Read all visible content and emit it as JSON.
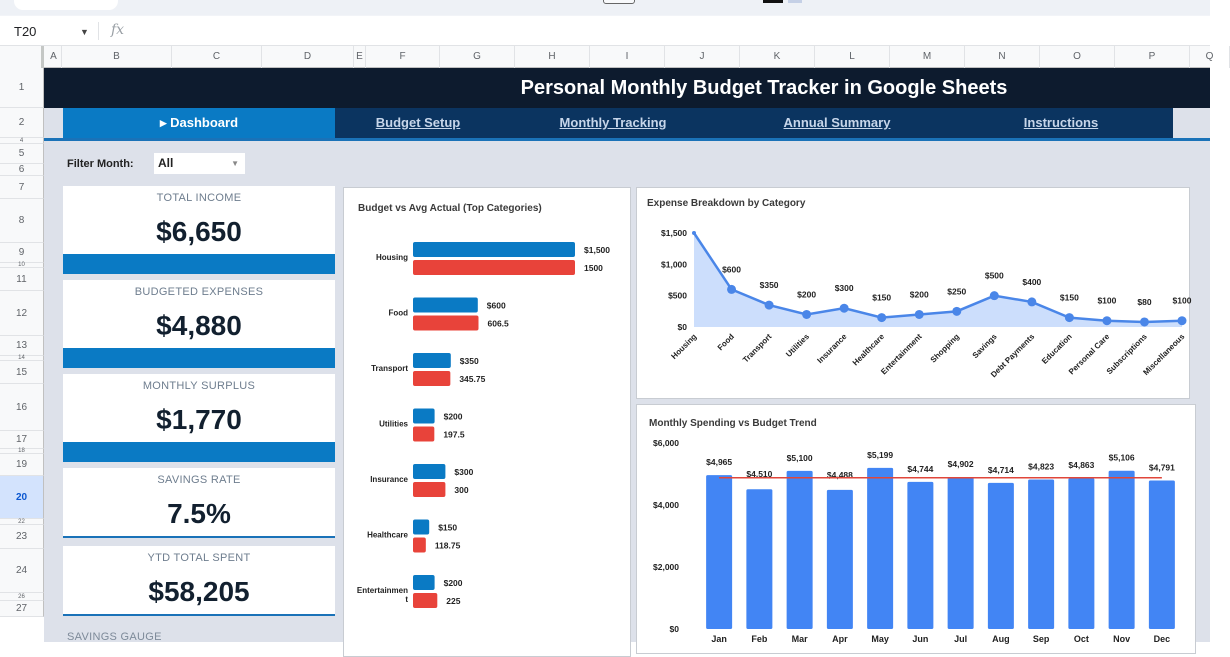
{
  "formula_bar": {
    "cell_ref": "T20",
    "fx_label": "fx",
    "formula": ""
  },
  "columns": [
    "A",
    "B",
    "C",
    "D",
    "E",
    "F",
    "G",
    "H",
    "I",
    "J",
    "K",
    "L",
    "M",
    "N",
    "O",
    "P",
    "Q"
  ],
  "rows": [
    "1",
    "2",
    "4",
    "5",
    "6",
    "7",
    "8",
    "9",
    "10",
    "11",
    "12",
    "13",
    "14",
    "15",
    "16",
    "17",
    "18",
    "19",
    "20",
    "22",
    "23",
    "24",
    "26",
    "27"
  ],
  "selected_row": "20",
  "header": {
    "title": "Personal Monthly Budget Tracker in Google Sheets"
  },
  "nav": {
    "tabs": [
      {
        "label": "▸ Dashboard",
        "active": true
      },
      {
        "label": "Budget Setup",
        "active": false
      },
      {
        "label": "Monthly Tracking",
        "active": false
      },
      {
        "label": "Annual Summary",
        "active": false
      },
      {
        "label": "Instructions",
        "active": false
      }
    ]
  },
  "filter": {
    "label": "Filter Month:",
    "value": "All"
  },
  "kpis": [
    {
      "label": "TOTAL INCOME",
      "value": "$6,650"
    },
    {
      "label": "BUDGETED EXPENSES",
      "value": "$4,880"
    },
    {
      "label": "MONTHLY SURPLUS",
      "value": "$1,770"
    },
    {
      "label": "SAVINGS RATE",
      "value": "7.5%"
    },
    {
      "label": "YTD TOTAL SPENT",
      "value": "$58,205"
    }
  ],
  "gauge": {
    "label": "SAVINGS GAUGE"
  },
  "colors": {
    "title_bg": "#0d1b2e",
    "nav_bg": "#0b3460",
    "accent": "#0a7ac4",
    "budget_bar": "#0a7ac4",
    "actual_bar": "#e8433a",
    "line_series": "#4a86e8",
    "area_fill": "#c6dafc",
    "trend_bar": "#4285f4",
    "budget_line": "#e0463a"
  },
  "chart_data": [
    {
      "type": "bar",
      "orientation": "horizontal",
      "title": "Budget vs Avg Actual (Top Categories)",
      "categories": [
        "Housing",
        "Food",
        "Transport",
        "Utilities",
        "Insurance",
        "Healthcare",
        "Entertainment"
      ],
      "category_display": [
        "Housing",
        "Food",
        "Transport",
        "Utilities",
        "Insurance",
        "Healthcare",
        "Entertainmen t"
      ],
      "series": [
        {
          "name": "Budget",
          "values": [
            1500,
            600,
            350,
            200,
            300,
            150,
            200
          ],
          "labels": [
            "$1,500",
            "$600",
            "$350",
            "$200",
            "$300",
            "$150",
            "$200"
          ]
        },
        {
          "name": "Avg Actual",
          "values": [
            1500,
            606.5,
            345.75,
            197.5,
            300,
            118.75,
            225
          ],
          "labels": [
            "1500",
            "606.5",
            "345.75",
            "197.5",
            "300",
            "118.75",
            "225"
          ]
        }
      ],
      "xlim": [
        0,
        1500
      ]
    },
    {
      "type": "area",
      "title": "Expense Breakdown by Category",
      "categories": [
        "Housing",
        "Food",
        "Transport",
        "Utilities",
        "Insurance",
        "Healthcare",
        "Entertainment",
        "Shopping",
        "Savings",
        "Debt Payments",
        "Education",
        "Personal Care",
        "Subscriptions",
        "Miscellaneous"
      ],
      "values": [
        1500,
        600,
        350,
        200,
        300,
        150,
        200,
        250,
        500,
        400,
        150,
        100,
        80,
        100
      ],
      "labels": [
        "",
        "$600",
        "$350",
        "$200",
        "$300",
        "$150",
        "$200",
        "$250",
        "$500",
        "$400",
        "$150",
        "$100",
        "$80",
        "$100"
      ],
      "yticks": [
        "$0",
        "$500",
        "$1,000",
        "$1,500"
      ],
      "ytick_values": [
        0,
        500,
        1000,
        1500
      ],
      "ylim": [
        0,
        1500
      ]
    },
    {
      "type": "bar",
      "title": "Monthly Spending vs Budget Trend",
      "categories": [
        "Jan",
        "Feb",
        "Mar",
        "Apr",
        "May",
        "Jun",
        "Jul",
        "Aug",
        "Sep",
        "Oct",
        "Nov",
        "Dec"
      ],
      "series": [
        {
          "name": "Spending",
          "values": [
            4965,
            4510,
            5100,
            4488,
            5199,
            4744,
            4902,
            4714,
            4823,
            4863,
            5106,
            4791
          ],
          "labels": [
            "$4,965",
            "$4,510",
            "$5,100",
            "$4,488",
            "$5,199",
            "$4,744",
            "$4,902",
            "$4,714",
            "$4,823",
            "$4,863",
            "$5,106",
            "$4,791"
          ]
        },
        {
          "name": "Budget",
          "type": "line",
          "value": 4880
        }
      ],
      "yticks": [
        "$0",
        "$2,000",
        "$4,000",
        "$6,000"
      ],
      "ytick_values": [
        0,
        2000,
        4000,
        6000
      ],
      "ylim": [
        0,
        6000
      ]
    }
  ]
}
